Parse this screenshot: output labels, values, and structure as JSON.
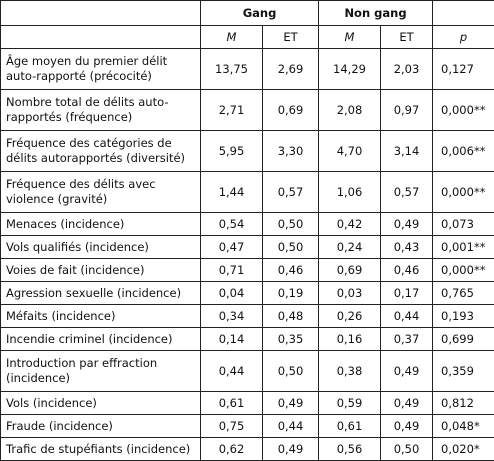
{
  "table": {
    "groups": [
      "Gang",
      "Non gang"
    ],
    "subheaders": [
      "M",
      "ET",
      "M",
      "ET",
      "p"
    ],
    "rows": [
      [
        "Âge moyen du premier délit auto-rapporté (précocité)",
        "13,75",
        "2,69",
        "14,29",
        "2,03",
        "0,127"
      ],
      [
        "Nombre total de délits auto-rapportés (fréquence)",
        "2,71",
        "0,69",
        "2,08",
        "0,97",
        "0,000**"
      ],
      [
        "Fréquence des catégories de délits autorapportés (diversité)",
        "5,95",
        "3,30",
        "4,70",
        "3,14",
        "0,006**"
      ],
      [
        "Fréquence des délits avec violence (gravité)",
        "1,44",
        "0,57",
        "1,06",
        "0,57",
        "0,000**"
      ],
      [
        "Menaces (incidence)",
        "0,54",
        "0,50",
        "0,42",
        "0,49",
        "0,073"
      ],
      [
        "Vols qualifiés (incidence)",
        "0,47",
        "0,50",
        "0,24",
        "0,43",
        "0,001**"
      ],
      [
        "Voies de fait (incidence)",
        "0,71",
        "0,46",
        "0,69",
        "0,46",
        "0,000**"
      ],
      [
        "Agression sexuelle (incidence)",
        "0,04",
        "0,19",
        "0,03",
        "0,17",
        "0,765"
      ],
      [
        "Méfaits (incidence)",
        "0,34",
        "0,48",
        "0,26",
        "0,44",
        "0,193"
      ],
      [
        "Incendie criminel (incidence)",
        "0,14",
        "0,35",
        "0,16",
        "0,37",
        "0,699"
      ],
      [
        "Introduction par effraction (incidence)",
        "0,44",
        "0,50",
        "0,38",
        "0,49",
        "0,359"
      ],
      [
        "Vols (incidence)",
        "0,61",
        "0,49",
        "0,59",
        "0,49",
        "0,812"
      ],
      [
        "Fraude (incidence)",
        "0,75",
        "0,44",
        "0,61",
        "0,49",
        "0,048*"
      ],
      [
        "Trafic de stupéfiants (incidence)",
        "0,62",
        "0,49",
        "0,56",
        "0,50",
        "0,020*"
      ]
    ]
  }
}
